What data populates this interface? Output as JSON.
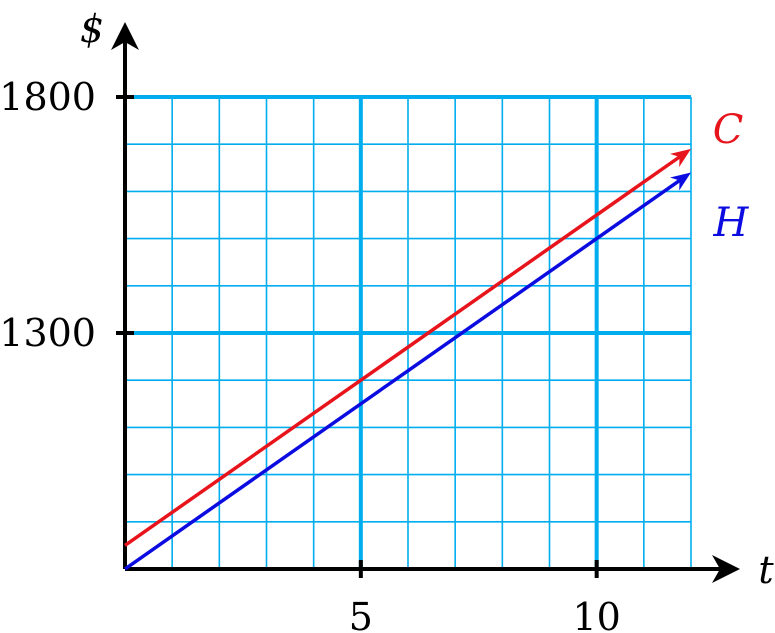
{
  "chart_data": {
    "type": "line",
    "xlabel": "t",
    "ylabel": "$",
    "xlim": [
      0,
      12
    ],
    "ylim": [
      800,
      1800
    ],
    "x_ticks": [
      5,
      10
    ],
    "x_tick_labels": [
      "5",
      "10"
    ],
    "y_ticks": [
      1300,
      1800
    ],
    "y_tick_labels": [
      "1300",
      "1800"
    ],
    "grid": true,
    "grid_minor_step_x": 1,
    "grid_minor_step_y": 100,
    "grid_major_step_x": 5,
    "grid_major_step_y": 500,
    "series": [
      {
        "name": "C",
        "color": "#e8141c",
        "x": [
          0,
          12
        ],
        "y": [
          850,
          1690
        ]
      },
      {
        "name": "H",
        "color": "#0c0ce0",
        "x": [
          0,
          12
        ],
        "y": [
          800,
          1640
        ]
      }
    ],
    "colors": {
      "grid": "#00aeef",
      "axis": "#000000"
    }
  }
}
